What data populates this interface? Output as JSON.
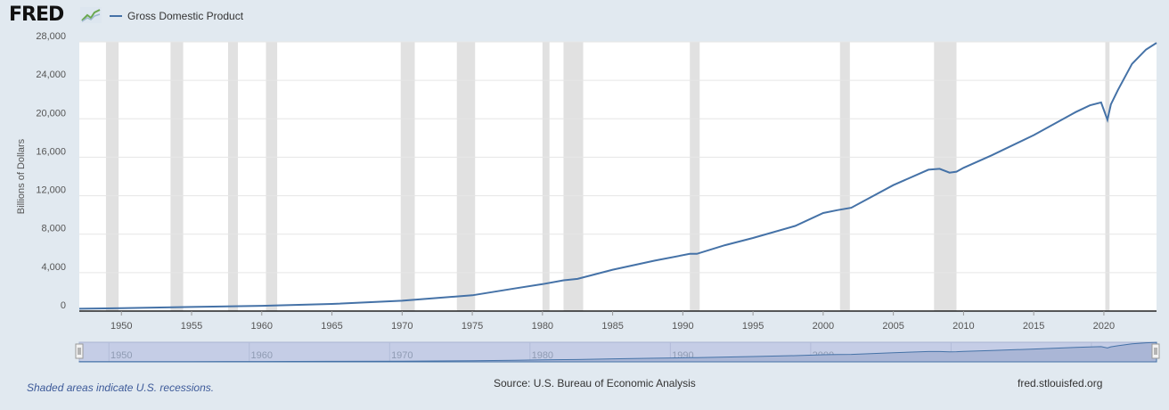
{
  "header": {
    "logo": "FRED",
    "logo_icon": "line-graph-icon",
    "legend_label": "Gross Domestic Product"
  },
  "footer": {
    "note": "Shaded areas indicate U.S. recessions.",
    "source": "Source: U.S. Bureau of Economic Analysis",
    "url": "fred.stlouisfed.org"
  },
  "colors": {
    "background": "#e1e9f0",
    "plot_background": "#ffffff",
    "line": "#4572a7",
    "recession": "#e1e1e1",
    "navigator_fill": "#c5cde6",
    "navigator_line": "#4572a7"
  },
  "chart_data": {
    "type": "line",
    "title": "",
    "xlabel": "",
    "ylabel": "Billions of Dollars",
    "xlim": [
      1947.0,
      2023.75
    ],
    "ylim": [
      0,
      28000
    ],
    "xticks": [
      1950,
      1955,
      1960,
      1965,
      1970,
      1975,
      1980,
      1985,
      1990,
      1995,
      2000,
      2005,
      2010,
      2015,
      2020
    ],
    "yticks": [
      0,
      4000,
      8000,
      12000,
      16000,
      20000,
      24000,
      28000
    ],
    "ytick_labels": [
      "0",
      "4,000",
      "8,000",
      "12,000",
      "16,000",
      "20,000",
      "24,000",
      "28,000"
    ],
    "grid": "horizontal",
    "legend": "top-left",
    "navigator_ticks": [
      1950,
      1960,
      1970,
      1980,
      1990,
      2000,
      2010,
      2020
    ],
    "recessions": [
      [
        1948.9,
        1949.8
      ],
      [
        1953.5,
        1954.4
      ],
      [
        1957.6,
        1958.3
      ],
      [
        1960.3,
        1961.1
      ],
      [
        1969.9,
        1970.9
      ],
      [
        1973.9,
        1975.2
      ],
      [
        1980.0,
        1980.5
      ],
      [
        1981.5,
        1982.9
      ],
      [
        1990.5,
        1991.2
      ],
      [
        2001.2,
        2001.9
      ],
      [
        2007.9,
        2009.5
      ],
      [
        2020.1,
        2020.4
      ]
    ],
    "series": [
      {
        "name": "Gross Domestic Product",
        "x": [
          1947.0,
          1950.0,
          1955.0,
          1960.0,
          1965.0,
          1970.0,
          1975.0,
          1978.0,
          1980.0,
          1981.5,
          1982.5,
          1985.0,
          1988.0,
          1990.5,
          1991.0,
          1993.0,
          1995.0,
          1998.0,
          2000.0,
          2001.0,
          2002.0,
          2005.0,
          2007.5,
          2008.3,
          2009.0,
          2009.5,
          2010.0,
          2012.0,
          2015.0,
          2018.0,
          2019.0,
          2019.8,
          2020.25,
          2020.5,
          2021.0,
          2022.0,
          2023.0,
          2023.75
        ],
        "values": [
          243,
          300,
          427,
          543,
          744,
          1073,
          1638,
          2350,
          2800,
          3200,
          3350,
          4300,
          5250,
          5950,
          5950,
          6850,
          7600,
          8850,
          10200,
          10500,
          10750,
          13100,
          14700,
          14800,
          14400,
          14500,
          14900,
          16200,
          18300,
          20700,
          21400,
          21700,
          19900,
          21500,
          23000,
          25700,
          27200,
          27900
        ]
      }
    ]
  }
}
